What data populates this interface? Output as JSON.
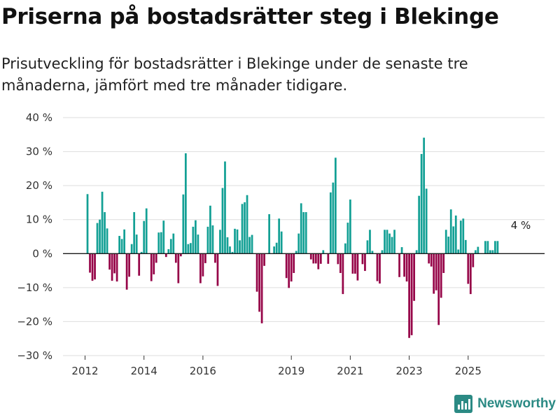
{
  "chart_data": {
    "type": "bar",
    "title": "Priserna på bostadsrätter steg i Blekinge",
    "subtitle": "Prisutveckling för bostadsrätter i Blekinge under de senaste tre månaderna, jämfört med tre månader tidigare.",
    "xlabel": "",
    "ylabel": "",
    "ylim": [
      -30,
      40
    ],
    "y_ticks": [
      40,
      30,
      20,
      10,
      0,
      -10,
      -20,
      -30
    ],
    "y_tick_labels": [
      "40 %",
      "30 %",
      "20 %",
      "10 %",
      "0 %",
      "−10 %",
      "−20 %",
      "−30 %"
    ],
    "x_ticks": [
      2012,
      2014,
      2016,
      2019,
      2021,
      2023,
      2025
    ],
    "x_tick_labels": [
      "2012",
      "2014",
      "2016",
      "2019",
      "2021",
      "2023",
      "2025"
    ],
    "grid": true,
    "x_start": 2012,
    "months_per_bar": 1,
    "values": [
      0,
      17.5,
      -5.6,
      -8,
      -7.6,
      9,
      10,
      18.2,
      12.2,
      7.4,
      -4.7,
      -8,
      -5.8,
      -8.2,
      5.2,
      4.3,
      7.1,
      -10.6,
      -6.8,
      2.8,
      12.2,
      5.6,
      -6.5,
      0.5,
      9.6,
      13.3,
      0,
      -8.1,
      -6.1,
      -2.7,
      6.2,
      6.3,
      9.7,
      -1,
      1.3,
      4.3,
      5.9,
      -2.7,
      -8.7,
      -0.8,
      17.4,
      29.5,
      2.8,
      3.1,
      7.9,
      9.8,
      5.6,
      -8.7,
      -6.7,
      -2.8,
      7.9,
      14.1,
      8.3,
      -2.7,
      -9.5,
      7,
      19.3,
      27.1,
      4.8,
      2.1,
      0.5,
      7.3,
      7.1,
      3.9,
      14.6,
      15.1,
      17.2,
      4.9,
      5.5,
      0,
      -11.2,
      -17.1,
      -20.5,
      -3.6,
      0,
      11.6,
      0,
      2.1,
      3.2,
      10.3,
      6.5,
      0,
      -7.2,
      -10.1,
      -8.2,
      -5.7,
      0.8,
      5.9,
      14.8,
      12.2,
      12.2,
      0,
      -1.7,
      -2.9,
      -2.9,
      -4.6,
      -3,
      1,
      0,
      -3,
      18,
      20.9,
      28.2,
      -3.1,
      -5.7,
      -11.9,
      3,
      9.1,
      15.9,
      -5.9,
      -5.9,
      -7.9,
      0,
      -3.1,
      -5.1,
      3.9,
      7,
      0.8,
      0,
      -8.1,
      -8.8,
      1,
      7,
      7,
      5.9,
      4.9,
      7,
      0,
      -6.9,
      1.9,
      -6.8,
      -8.2,
      -24.8,
      -24,
      -13.9,
      1,
      17,
      29.3,
      34.1,
      19.1,
      -2.9,
      -3.8,
      -11.8,
      -10.8,
      -21,
      -13,
      -5.7,
      7,
      5,
      13,
      8,
      11.2,
      1.2,
      9.7,
      10.3,
      4,
      -8.9,
      -11.9,
      -4,
      1,
      2,
      0,
      0,
      3.7,
      3.7,
      1,
      1,
      3.7,
      3.7
    ],
    "last_value_label": "4 %",
    "colors": {
      "positive": "#13a095",
      "negative": "#960548",
      "zero_line": "#1a1a1a",
      "grid": "#dedede"
    }
  },
  "brand": {
    "name": "Newsworthy",
    "icon": "bar-chart-logo-icon",
    "color": "#2b8a84"
  }
}
